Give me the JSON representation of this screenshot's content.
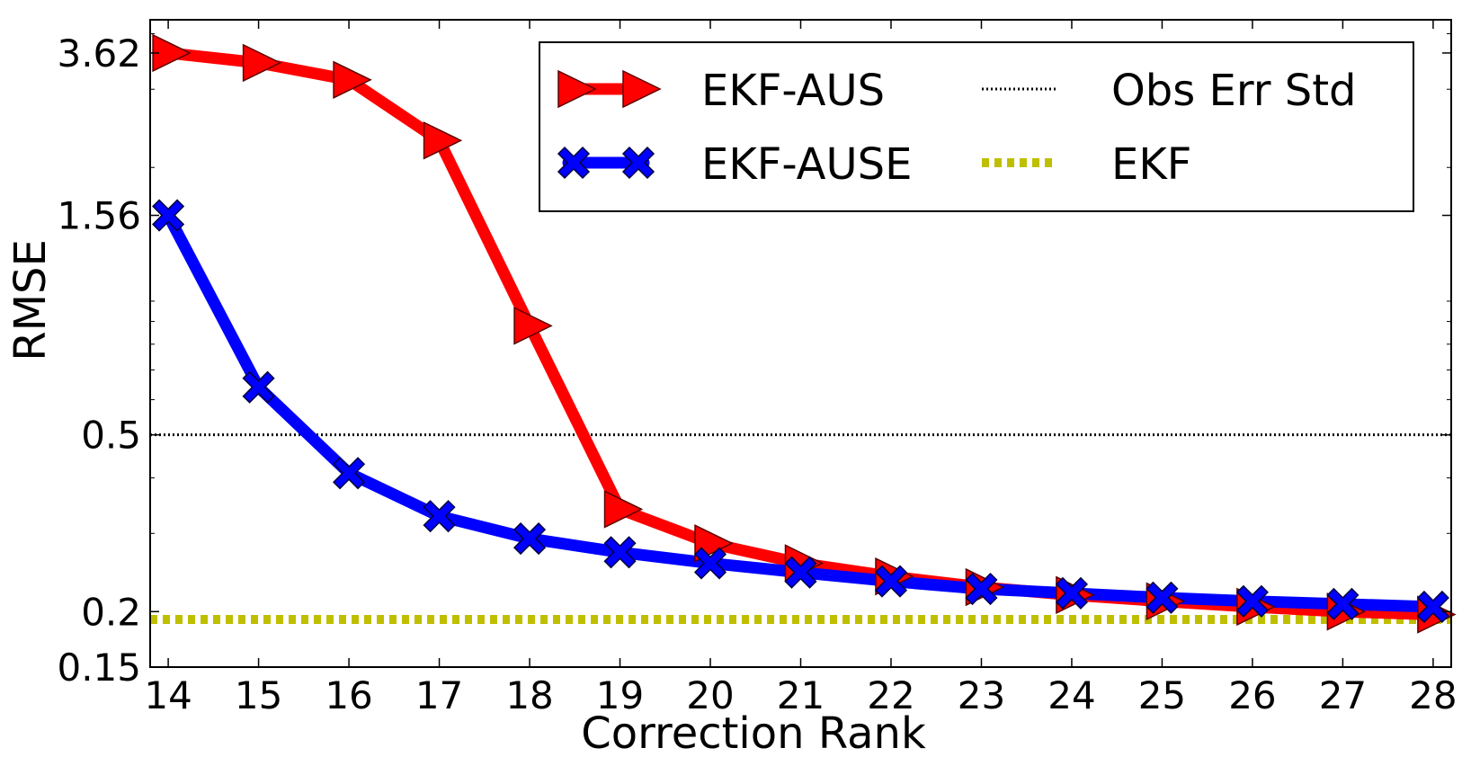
{
  "chart_data": {
    "type": "line",
    "title": "",
    "xlabel": "Correction Rank",
    "ylabel": "RMSE",
    "xlim": [
      13.8,
      28.2
    ],
    "ylim": [
      0.15,
      4.3
    ],
    "yscale": "log",
    "xticks": [
      14,
      15,
      16,
      17,
      18,
      19,
      20,
      21,
      22,
      23,
      24,
      25,
      26,
      27,
      28
    ],
    "yticks": [
      0.15,
      0.2,
      0.5,
      1.56,
      3.62
    ],
    "ytick_labels": [
      "0.15",
      "0.2",
      "0.5",
      "1.56",
      "3.62"
    ],
    "legend_position": "top-right",
    "grid": false,
    "x": [
      14,
      15,
      16,
      17,
      18,
      19,
      20,
      21,
      22,
      23,
      24,
      25,
      26,
      27,
      28
    ],
    "series": [
      {
        "name": "EKF-AUS",
        "color": "#ff0000",
        "marker": "triangle-right",
        "values": [
          3.62,
          3.44,
          3.15,
          2.3,
          0.88,
          0.34,
          0.285,
          0.257,
          0.24,
          0.227,
          0.218,
          0.211,
          0.205,
          0.2,
          0.197
        ]
      },
      {
        "name": "EKF-AUSE",
        "color": "#0000ff",
        "marker": "x-filled",
        "values": [
          1.56,
          0.64,
          0.41,
          0.328,
          0.292,
          0.272,
          0.257,
          0.245,
          0.234,
          0.225,
          0.22,
          0.215,
          0.211,
          0.208,
          0.205
        ]
      }
    ],
    "reference_lines": [
      {
        "name": "Obs Err Std",
        "value": 0.5,
        "color": "#000000",
        "style": "hatched"
      },
      {
        "name": "EKF",
        "value": 0.192,
        "color": "#bfbf00",
        "style": "dotted"
      }
    ]
  }
}
